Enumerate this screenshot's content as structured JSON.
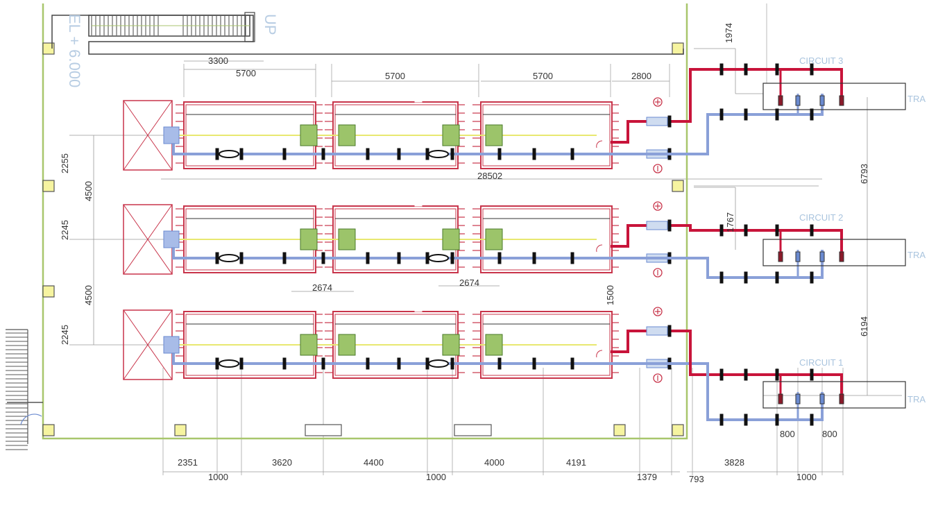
{
  "annotations": {
    "elevation": "EL + 6.000",
    "stair_direction": "UP",
    "transformer_label": "TRA"
  },
  "circuits": [
    "CIRCUIT 3",
    "CIRCUIT 2",
    "CIRCUIT 1"
  ],
  "dimensions": {
    "top": [
      "3300",
      "5700",
      "5700",
      "5700",
      "2800"
    ],
    "overall_length": "28502",
    "circuit3_offset": "1974",
    "circuit2_offset": "1767",
    "right_vertical": [
      "6793",
      "6194"
    ],
    "left_vertical": [
      "2255",
      "4500",
      "2245",
      "4500",
      "2245"
    ],
    "coupling_spacing": [
      "2674",
      "2674"
    ],
    "vertical_1500": "1500",
    "bottom_row1": [
      "2351",
      "3620",
      "4400",
      "4000",
      "4191",
      "3828"
    ],
    "bottom_row2": [
      "1000",
      "1000",
      "1379",
      "793",
      "1000"
    ],
    "busbar_spacing": [
      "800",
      "800"
    ]
  },
  "symbols": {
    "positive": "+",
    "negative": "−"
  },
  "colors": {
    "wall": "#a8c66c",
    "equipment": "#c8344a",
    "positive_pipe": "#c8143a",
    "negative_pipe": "#8aa0d8",
    "shaft": "#e8e870",
    "coupling": "#8ab84a"
  }
}
